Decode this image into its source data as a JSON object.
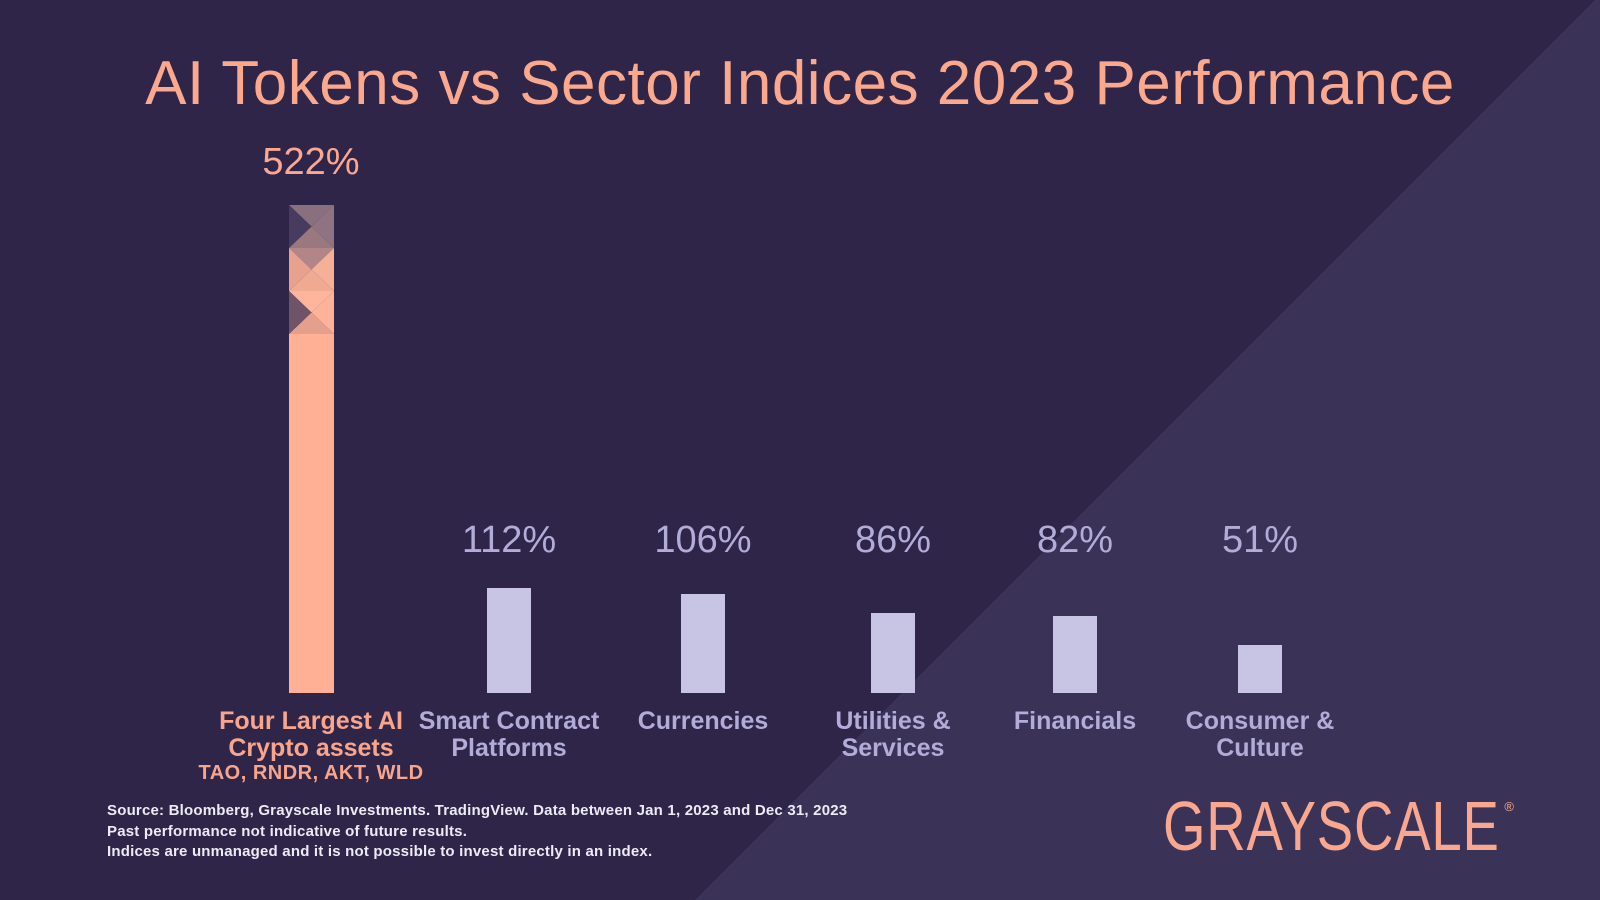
{
  "title": "AI Tokens vs Sector Indices 2023 Performance",
  "chart_data": {
    "type": "bar",
    "title": "AI Tokens vs Sector Indices 2023 Performance",
    "value_suffix": "%",
    "categories": [
      "Four Largest AI Crypto assets",
      "Smart Contract Platforms",
      "Currencies",
      "Utilities & Services",
      "Financials",
      "Consumer & Culture"
    ],
    "category_label_lines": [
      [
        "Four Largest AI",
        "Crypto assets"
      ],
      [
        "Smart Contract",
        "Platforms"
      ],
      [
        "Currencies"
      ],
      [
        "Utilities &",
        "Services"
      ],
      [
        "Financials"
      ],
      [
        "Consumer &",
        "Culture"
      ]
    ],
    "values": [
      522,
      112,
      106,
      86,
      82,
      51
    ],
    "value_labels": [
      "522%",
      "112%",
      "106%",
      "86%",
      "82%",
      "51%"
    ],
    "highlight_index": 0,
    "highlight_sublabel": "TAO, RNDR, AKT, WLD",
    "ylim": [
      0,
      560
    ],
    "grid": false,
    "legend": false,
    "colors": {
      "highlight_bar": "#FFB095",
      "highlight_text": "#F9A58C",
      "highlight_value_text": "#FCA78F",
      "default_bar": "#C8C4E4",
      "default_text": "#B2ACD9",
      "highlight_facets": [
        {
          "top": "#8A6F7F",
          "right": "#8F7383",
          "bottom": "#9B777E",
          "left": "#473C5F"
        },
        {
          "top": "#B28689",
          "right": "#F5B098",
          "bottom": "#F0AA92",
          "left": "#E7A28F"
        },
        {
          "top": "#FFB59B",
          "right": "#FEB299",
          "bottom": "#E5A08D",
          "left": "#6F5366"
        }
      ]
    }
  },
  "footer": {
    "source_lines": [
      "Source: Bloomberg, Grayscale Investments. TradingView. Data between Jan 1, 2023 and Dec 31, 2023",
      "Past performance not indicative of future results.",
      "Indices are unmanaged and it is not possible to invest directly in an index."
    ]
  },
  "logo": {
    "text": "GRAYSCALE",
    "registered_mark": "®"
  },
  "colors": {
    "background": "#2E2549",
    "background_accent": "#3B3357",
    "title": "#FCA88D",
    "footer_text": "#EDEBF4",
    "logo": "#F9A78E"
  }
}
